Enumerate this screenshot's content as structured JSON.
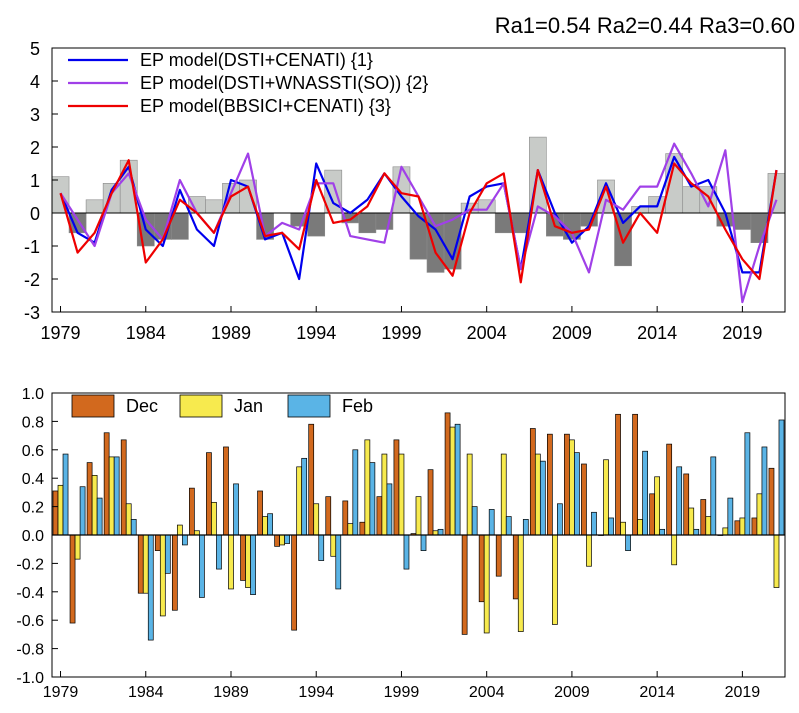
{
  "header": {
    "text": "Ra1=0.54 Ra2=0.44 Ra3=0.60"
  },
  "colors": {
    "model1": "#0000ee",
    "model2": "#a040e8",
    "model3": "#ee0000",
    "bar_pos": "#c8cbc8",
    "bar_neg": "#7a7a7a",
    "dec": "#d2691e",
    "jan": "#f7ea4e",
    "feb": "#5ab4e6"
  },
  "chart_data": [
    {
      "type": "line",
      "years": [
        1979,
        1980,
        1981,
        1982,
        1983,
        1984,
        1985,
        1986,
        1987,
        1988,
        1989,
        1990,
        1991,
        1992,
        1993,
        1994,
        1995,
        1996,
        1997,
        1998,
        1999,
        2000,
        2001,
        2002,
        2003,
        2004,
        2005,
        2006,
        2007,
        2008,
        2009,
        2010,
        2011,
        2012,
        2013,
        2014,
        2015,
        2016,
        2017,
        2018,
        2019,
        2020,
        2021
      ],
      "observed": [
        1.1,
        -0.6,
        0.4,
        0.9,
        1.6,
        -1.0,
        -0.8,
        -0.8,
        0.5,
        0.4,
        0.9,
        1.0,
        -0.8,
        0.0,
        -0.4,
        -0.7,
        1.3,
        -0.3,
        -0.6,
        -0.5,
        1.4,
        -1.4,
        -1.8,
        -1.7,
        0.3,
        0.4,
        -0.6,
        -0.6,
        2.3,
        -0.7,
        -0.8,
        -0.4,
        1.0,
        -1.6,
        0.2,
        0.5,
        1.8,
        0.8,
        0.8,
        -0.4,
        -0.5,
        -0.9,
        1.2
      ],
      "series": [
        {
          "name": "EP model(DSTI+CENATI) {1}",
          "values": [
            0.6,
            -0.6,
            -0.9,
            0.7,
            1.4,
            -0.5,
            -1.0,
            0.7,
            -0.5,
            -1.0,
            1.0,
            0.8,
            -0.8,
            -0.6,
            -2.0,
            1.5,
            0.3,
            0.0,
            0.4,
            1.2,
            0.5,
            -0.1,
            -0.5,
            -1.4,
            0.5,
            0.8,
            0.9,
            -1.7,
            1.3,
            0.0,
            -0.9,
            -0.4,
            0.9,
            -0.3,
            0.2,
            0.2,
            1.7,
            0.8,
            1.0,
            0.0,
            -1.8,
            -1.8,
            1.3
          ]
        },
        {
          "name": "EP model(DSTI+WNASSTI(SO)) {2}",
          "values": [
            0.6,
            -0.2,
            -1.0,
            0.6,
            1.2,
            -0.2,
            -0.8,
            1.0,
            0.0,
            -0.6,
            0.6,
            1.8,
            -0.7,
            -0.3,
            -0.5,
            0.9,
            0.9,
            -0.7,
            -0.8,
            -0.9,
            1.4,
            0.5,
            -0.4,
            -0.2,
            0.1,
            0.1,
            0.9,
            -1.7,
            0.2,
            -0.1,
            -0.6,
            -1.8,
            0.4,
            0.1,
            0.8,
            0.8,
            2.1,
            1.2,
            0.2,
            1.9,
            -2.7,
            -1.0,
            0.4
          ]
        },
        {
          "name": "EP model(BBSICI+CENATI) {3}",
          "values": [
            0.6,
            -1.2,
            -0.6,
            0.6,
            1.6,
            -1.5,
            -0.8,
            0.4,
            0.0,
            -0.6,
            0.5,
            0.8,
            -0.7,
            -0.6,
            -1.1,
            1.0,
            -0.3,
            -0.2,
            0.2,
            1.2,
            0.6,
            0.5,
            -1.2,
            -1.9,
            0.0,
            0.9,
            1.2,
            -2.1,
            1.3,
            -0.4,
            -0.6,
            -0.5,
            0.8,
            -0.9,
            0.0,
            -0.6,
            1.5,
            0.9,
            0.5,
            -0.5,
            -1.4,
            -2.0,
            1.3
          ]
        }
      ],
      "ylim": [
        -3,
        5
      ],
      "yticks": [
        "-3",
        "-2",
        "-1",
        "0",
        "1",
        "2",
        "3",
        "4",
        "5"
      ],
      "xtick_labels": [
        "1979",
        "1984",
        "1989",
        "1994",
        "1999",
        "2004",
        "2009",
        "2014",
        "2019"
      ],
      "legend": "top-left",
      "grid": false
    },
    {
      "type": "bar",
      "years": [
        1979,
        1980,
        1981,
        1982,
        1983,
        1984,
        1985,
        1986,
        1987,
        1988,
        1989,
        1990,
        1991,
        1992,
        1993,
        1994,
        1995,
        1996,
        1997,
        1998,
        1999,
        2000,
        2001,
        2002,
        2003,
        2004,
        2005,
        2006,
        2007,
        2008,
        2009,
        2010,
        2011,
        2012,
        2013,
        2014,
        2015,
        2016,
        2017,
        2018,
        2019,
        2020,
        2021
      ],
      "series": [
        {
          "name": "Dec",
          "values": [
            0.31,
            -0.62,
            0.51,
            0.72,
            0.67,
            -0.41,
            -0.11,
            -0.53,
            0.33,
            0.58,
            0.62,
            -0.32,
            0.31,
            -0.08,
            -0.67,
            0.78,
            0.27,
            0.24,
            0.09,
            0.27,
            0.67,
            0.01,
            0.46,
            0.86,
            -0.7,
            -0.47,
            -0.29,
            -0.45,
            0.75,
            0.71,
            0.71,
            0.5,
            0.0,
            0.85,
            0.85,
            0.29,
            0.64,
            0.43,
            0.25,
            0.0,
            0.1,
            0.12,
            0.47
          ]
        },
        {
          "name": "Jan",
          "values": [
            0.35,
            -0.17,
            0.42,
            0.55,
            0.22,
            -0.41,
            -0.57,
            0.07,
            0.03,
            0.23,
            -0.38,
            -0.37,
            0.13,
            -0.07,
            0.48,
            0.22,
            -0.15,
            0.08,
            0.67,
            0.57,
            0.57,
            0.27,
            0.03,
            0.76,
            0.57,
            -0.69,
            0.57,
            -0.68,
            0.57,
            -0.63,
            0.67,
            -0.22,
            0.53,
            0.09,
            0.11,
            0.41,
            -0.21,
            0.19,
            0.13,
            0.05,
            0.12,
            0.29,
            -0.37
          ]
        },
        {
          "name": "Feb",
          "values": [
            0.57,
            0.34,
            0.26,
            0.55,
            0.11,
            -0.74,
            -0.27,
            -0.07,
            -0.44,
            -0.24,
            0.36,
            -0.42,
            0.15,
            -0.06,
            0.54,
            -0.18,
            -0.38,
            0.6,
            0.51,
            0.36,
            -0.24,
            -0.11,
            0.04,
            0.78,
            0.2,
            0.18,
            0.13,
            0.11,
            0.52,
            0.22,
            0.58,
            0.16,
            0.12,
            -0.11,
            0.59,
            0.04,
            0.48,
            0.04,
            0.55,
            0.26,
            0.72,
            0.62,
            0.81
          ]
        }
      ],
      "ylim": [
        -1.0,
        1.0
      ],
      "yticks": [
        "-1.0",
        "-0.8",
        "-0.6",
        "-0.4",
        "-0.2",
        "0.0",
        "0.2",
        "0.4",
        "0.6",
        "0.8",
        "1.0"
      ],
      "xtick_labels": [
        "1979",
        "1984",
        "1989",
        "1994",
        "1999",
        "2004",
        "2009",
        "2014",
        "2019"
      ],
      "legend": "top-left",
      "grid": false
    }
  ]
}
